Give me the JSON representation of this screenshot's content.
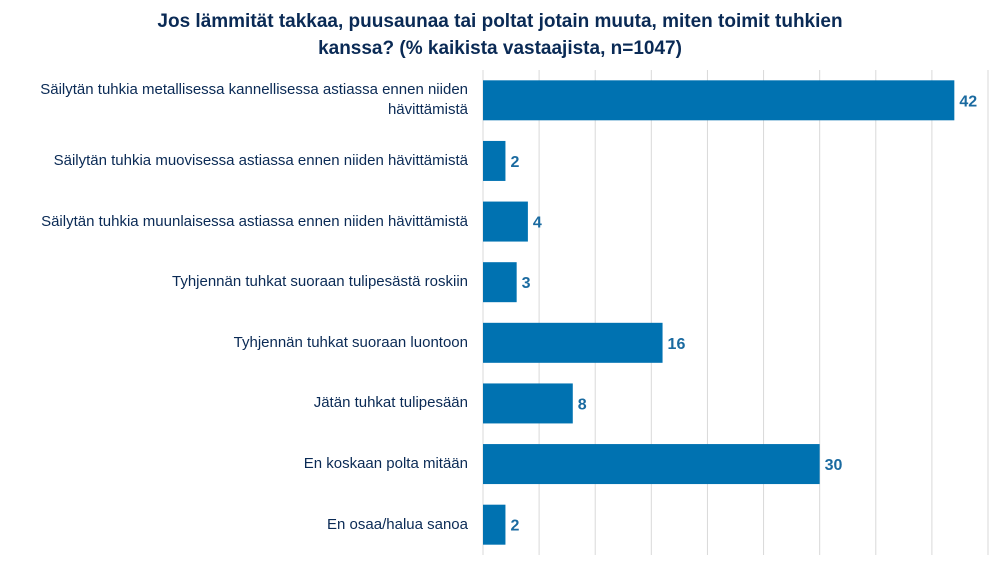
{
  "chart_data": {
    "type": "bar",
    "orientation": "horizontal",
    "title_lines": [
      "Jos lämmität takkaa, puusaunaa tai poltat jotain muuta, miten toimit tuhkien",
      "kanssa? (% kaikista vastaajista, n=1047)"
    ],
    "categories": [
      "Säilytän tuhkia metallisessa kannellisessa astiassa ennen niiden hävittämistä",
      "Säilytän tuhkia muovisessa astiassa ennen niiden hävittämistä",
      "Säilytän tuhkia muunlaisessa astiassa ennen niiden hävittämistä",
      "Tyhjennän tuhkat suoraan tulipesästä roskiin",
      "Tyhjennän tuhkat suoraan luontoon",
      "Jätän tuhkat tulipesään",
      "En koskaan polta mitään",
      "En osaa/halua sanoa"
    ],
    "values": [
      42,
      2,
      4,
      3,
      16,
      8,
      30,
      2
    ],
    "xlim": [
      0,
      45
    ],
    "grid": true,
    "legend": "none",
    "colors": {
      "bar": "#0072b1",
      "label": "#0a2a55",
      "value": "#1a6aa0",
      "grid": "#d9d9d9"
    }
  }
}
